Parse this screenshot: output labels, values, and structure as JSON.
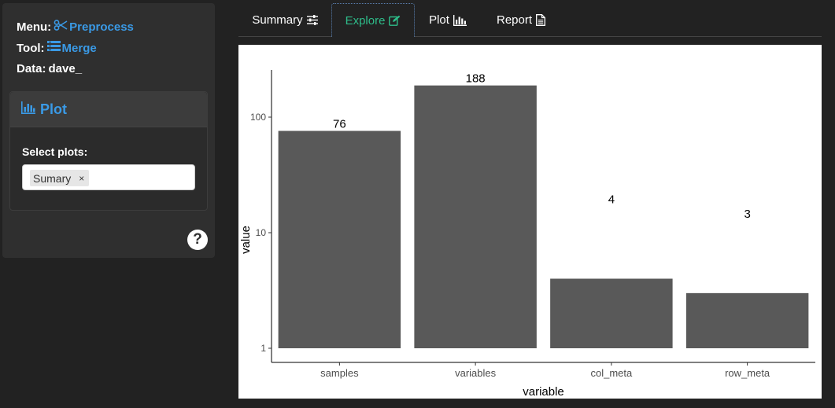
{
  "sidebar": {
    "menu_label": "Menu:",
    "menu_value": "Preprocess",
    "menu_icon": "scissors-icon",
    "tool_label": "Tool:",
    "tool_value": "Merge",
    "tool_icon": "merge-list-icon",
    "data_label": "Data:",
    "data_value": "dave_",
    "plot_panel": {
      "title": "Plot",
      "icon": "bar-chart-icon",
      "select_label": "Select plots:",
      "selected_chip": "Sumary",
      "chip_remove": "×"
    },
    "help_label": "?"
  },
  "tabs": [
    {
      "label": "Summary",
      "icon": "sliders-icon",
      "active": false
    },
    {
      "label": "Explore",
      "icon": "edit-icon",
      "active": true
    },
    {
      "label": "Plot",
      "icon": "bar-chart-icon",
      "active": false
    },
    {
      "label": "Report",
      "icon": "document-icon",
      "active": false
    }
  ],
  "colors": {
    "accent_blue": "#3a9ae6",
    "active_tab": "#2ebd8a",
    "bar_fill": "#595959",
    "background": "#222222",
    "panel": "#2f2f2f"
  },
  "chart_data": {
    "type": "bar",
    "categories": [
      "samples",
      "variables",
      "col_meta",
      "row_meta"
    ],
    "values": [
      76,
      188,
      4,
      3
    ],
    "labels": [
      "76",
      "188",
      "4",
      "3"
    ],
    "xlabel": "variable",
    "ylabel": "value",
    "yscale": "log10",
    "yticks": [
      1,
      10,
      100
    ],
    "ytick_labels": [
      "1",
      "10",
      "100"
    ],
    "ylim": [
      0.8,
      270
    ],
    "grid": false
  }
}
